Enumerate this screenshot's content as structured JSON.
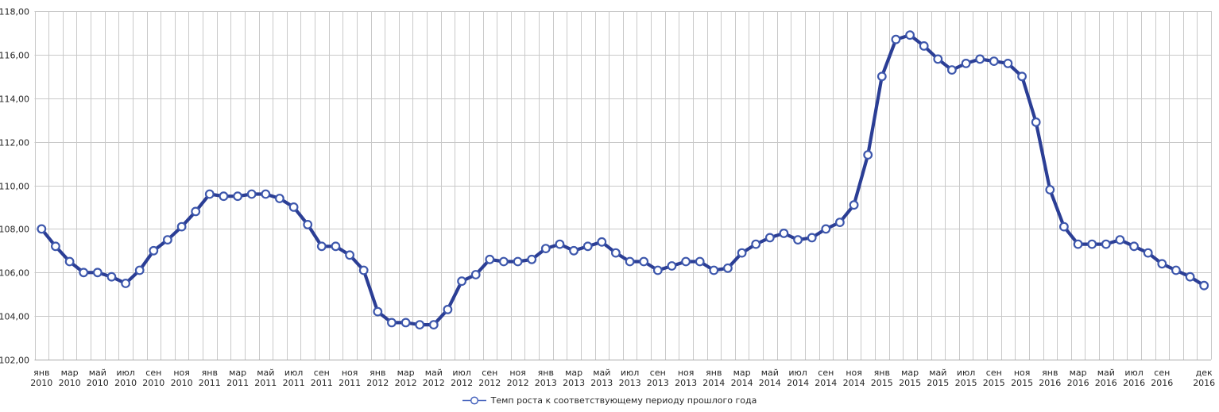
{
  "chart_data": {
    "type": "line",
    "title": "",
    "xlabel": "",
    "ylabel": "",
    "ylim": [
      102,
      118
    ],
    "y_tick_step": 2,
    "grid": "both",
    "legend_position": "bottom-center",
    "x_start": "янв 2010",
    "x_end": "дек 2016",
    "y_ticks": [
      "118,00",
      "116,00",
      "114,00",
      "112,00",
      "110,00",
      "108,00",
      "106,00",
      "104,00",
      "102,00"
    ],
    "x_ticks": [
      {
        "i": 0,
        "m": "янв",
        "y": "2010"
      },
      {
        "i": 2,
        "m": "мар",
        "y": "2010"
      },
      {
        "i": 4,
        "m": "май",
        "y": "2010"
      },
      {
        "i": 6,
        "m": "июл",
        "y": "2010"
      },
      {
        "i": 8,
        "m": "сен",
        "y": "2010"
      },
      {
        "i": 10,
        "m": "ноя",
        "y": "2010"
      },
      {
        "i": 12,
        "m": "янв",
        "y": "2011"
      },
      {
        "i": 14,
        "m": "мар",
        "y": "2011"
      },
      {
        "i": 16,
        "m": "май",
        "y": "2011"
      },
      {
        "i": 18,
        "m": "июл",
        "y": "2011"
      },
      {
        "i": 20,
        "m": "сен",
        "y": "2011"
      },
      {
        "i": 22,
        "m": "ноя",
        "y": "2011"
      },
      {
        "i": 24,
        "m": "янв",
        "y": "2012"
      },
      {
        "i": 26,
        "m": "мар",
        "y": "2012"
      },
      {
        "i": 28,
        "m": "май",
        "y": "2012"
      },
      {
        "i": 30,
        "m": "июл",
        "y": "2012"
      },
      {
        "i": 32,
        "m": "сен",
        "y": "2012"
      },
      {
        "i": 34,
        "m": "ноя",
        "y": "2012"
      },
      {
        "i": 36,
        "m": "янв",
        "y": "2013"
      },
      {
        "i": 38,
        "m": "мар",
        "y": "2013"
      },
      {
        "i": 40,
        "m": "май",
        "y": "2013"
      },
      {
        "i": 42,
        "m": "июл",
        "y": "2013"
      },
      {
        "i": 44,
        "m": "сен",
        "y": "2013"
      },
      {
        "i": 46,
        "m": "ноя",
        "y": "2013"
      },
      {
        "i": 48,
        "m": "янв",
        "y": "2014"
      },
      {
        "i": 50,
        "m": "мар",
        "y": "2014"
      },
      {
        "i": 52,
        "m": "май",
        "y": "2014"
      },
      {
        "i": 54,
        "m": "июл",
        "y": "2014"
      },
      {
        "i": 56,
        "m": "сен",
        "y": "2014"
      },
      {
        "i": 58,
        "m": "ноя",
        "y": "2014"
      },
      {
        "i": 60,
        "m": "янв",
        "y": "2015"
      },
      {
        "i": 62,
        "m": "мар",
        "y": "2015"
      },
      {
        "i": 64,
        "m": "май",
        "y": "2015"
      },
      {
        "i": 66,
        "m": "июл",
        "y": "2015"
      },
      {
        "i": 68,
        "m": "сен",
        "y": "2015"
      },
      {
        "i": 70,
        "m": "ноя",
        "y": "2015"
      },
      {
        "i": 72,
        "m": "янв",
        "y": "2016"
      },
      {
        "i": 74,
        "m": "мар",
        "y": "2016"
      },
      {
        "i": 76,
        "m": "май",
        "y": "2016"
      },
      {
        "i": 78,
        "m": "июл",
        "y": "2016"
      },
      {
        "i": 80,
        "m": "сен",
        "y": "2016"
      },
      {
        "i": 83,
        "m": "дек",
        "y": "2016"
      }
    ],
    "series": [
      {
        "name": "Темп роста к соответствующему периоду прошлого года",
        "values": [
          108.0,
          107.2,
          106.5,
          106.0,
          106.0,
          105.8,
          105.5,
          106.1,
          107.0,
          107.5,
          108.1,
          108.8,
          109.6,
          109.5,
          109.5,
          109.6,
          109.6,
          109.4,
          109.0,
          108.2,
          107.2,
          107.2,
          106.8,
          106.1,
          104.2,
          103.7,
          103.7,
          103.6,
          103.6,
          104.3,
          105.6,
          105.9,
          106.6,
          106.5,
          106.5,
          106.6,
          107.1,
          107.3,
          107.0,
          107.2,
          107.4,
          106.9,
          106.5,
          106.5,
          106.1,
          106.3,
          106.5,
          106.5,
          106.1,
          106.2,
          106.9,
          107.3,
          107.6,
          107.8,
          107.5,
          107.6,
          108.0,
          108.3,
          109.1,
          111.4,
          115.0,
          116.7,
          116.9,
          116.4,
          115.8,
          115.3,
          115.6,
          115.8,
          115.7,
          115.6,
          115.0,
          112.9,
          109.8,
          108.1,
          107.3,
          107.3,
          107.3,
          107.5,
          107.2,
          106.9,
          106.4,
          106.1,
          105.8,
          105.4
        ]
      }
    ],
    "colors": {
      "line": "#2B3E95",
      "marker_stroke": "#3D57AC",
      "marker_fill": "#FFFFFF",
      "grid": "#C9C9C9",
      "axis": "#A9A9A9",
      "text": "#262626",
      "legend_marker": "#4A66BE"
    }
  }
}
